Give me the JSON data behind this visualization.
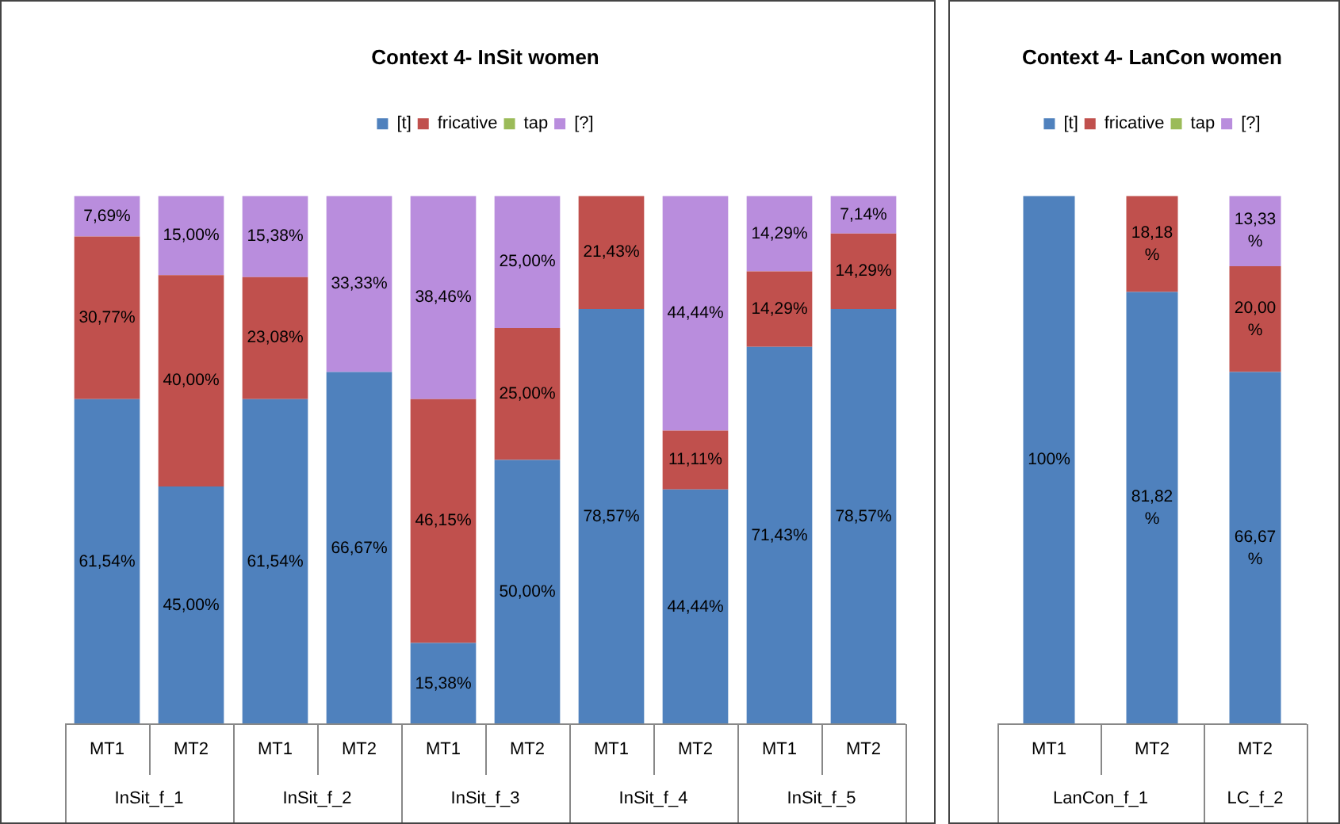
{
  "chart_data": [
    {
      "type": "bar",
      "title": "Context 4- InSit women",
      "stacked": true,
      "legend": "top",
      "tick_labels": "x",
      "ylim": [
        0,
        100
      ],
      "categories": [
        "MT1",
        "MT2",
        "MT1",
        "MT2",
        "MT1",
        "MT2",
        "MT1",
        "MT2",
        "MT1",
        "MT2"
      ],
      "annotations": [
        "InSit_f_1",
        "InSit_f_2",
        "InSit_f_3",
        "InSit_f_4",
        "InSit_f_5"
      ],
      "series": [
        {
          "name": "[t]",
          "color": "#4f81bd",
          "values": [
            61.54,
            45,
            61.54,
            66.67,
            15.38,
            50,
            78.57,
            44.44,
            71.43,
            78.57
          ],
          "value_labels": [
            "61,54%",
            "45,00%",
            "61,54%",
            "66,67%",
            "15,38%",
            "50,00%",
            "78,57%",
            "44,44%",
            "71,43%",
            "78,57%"
          ]
        },
        {
          "name": "fricative",
          "color": "#c0504d",
          "values": [
            30.77,
            40,
            23.08,
            0,
            46.15,
            25,
            21.43,
            11.11,
            14.29,
            14.29
          ],
          "value_labels": [
            "30,77%",
            "40,00%",
            "23,08%",
            null,
            "46,15%",
            "25,00%",
            "21,43%",
            "11,11%",
            "14,29%",
            "14,29%"
          ]
        },
        {
          "name": "tap",
          "color": "#9bbb59",
          "values": [
            0,
            0,
            0,
            0,
            0,
            0,
            0,
            0,
            0,
            0
          ],
          "value_labels": [
            null,
            null,
            null,
            null,
            null,
            null,
            null,
            null,
            null,
            null
          ]
        },
        {
          "name": "[?]",
          "color": "#b98ddd",
          "values": [
            7.69,
            15,
            15.38,
            33.33,
            38.46,
            25,
            0,
            44.44,
            14.29,
            7.14
          ],
          "value_labels": [
            "7,69%",
            "15,00%",
            "15,38%",
            "33,33%",
            "38,46%",
            "25,00%",
            null,
            "44,44%",
            "14,29%",
            "7,14%"
          ]
        }
      ]
    },
    {
      "type": "bar",
      "title": "Context 4- LanCon women",
      "stacked": true,
      "legend": "top",
      "tick_labels": "x",
      "ylim": [
        0,
        100
      ],
      "categories": [
        "MT1",
        "MT2",
        "MT2"
      ],
      "annotations": [
        "LanCon_f_1",
        "LC_f_2"
      ],
      "series": [
        {
          "name": "[t]",
          "color": "#4f81bd",
          "values": [
            100,
            81.82,
            66.67
          ],
          "value_labels": [
            "100%",
            "81,82 %",
            "66,67 %"
          ]
        },
        {
          "name": "fricative",
          "color": "#c0504d",
          "values": [
            0,
            18.18,
            20
          ],
          "value_labels": [
            null,
            "18,18 %",
            "20,00 %"
          ]
        },
        {
          "name": "tap",
          "color": "#9bbb59",
          "values": [
            0,
            0,
            0
          ],
          "value_labels": [
            null,
            null,
            null
          ]
        },
        {
          "name": "[?]",
          "color": "#b98ddd",
          "values": [
            0,
            0,
            13.33
          ],
          "value_labels": [
            null,
            null,
            "13,33 %"
          ]
        }
      ]
    }
  ]
}
